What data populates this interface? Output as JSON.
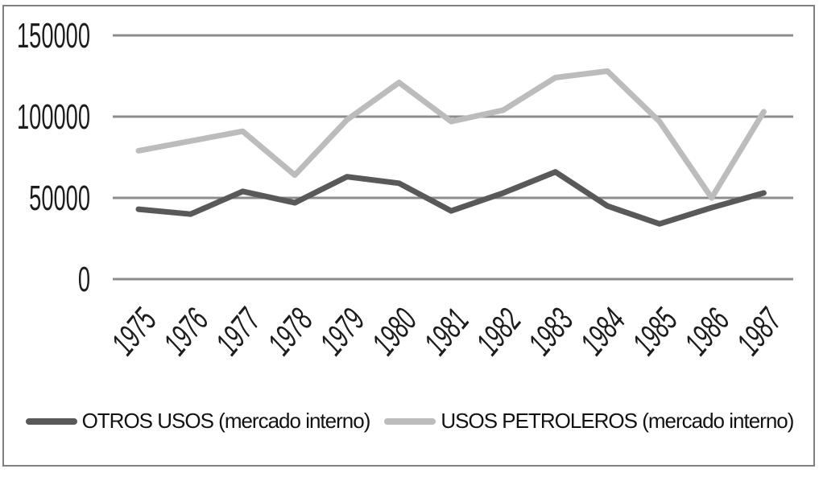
{
  "chart_data": {
    "type": "line",
    "title": "",
    "xlabel": "",
    "ylabel": "",
    "categories": [
      "1975",
      "1976",
      "1977",
      "1978",
      "1979",
      "1980",
      "1981",
      "1982",
      "1983",
      "1984",
      "1985",
      "1986",
      "1987"
    ],
    "series": [
      {
        "name": "OTROS USOS (mercado interno)",
        "color": "#595959",
        "values": [
          43000,
          40000,
          54000,
          47000,
          63000,
          59000,
          42000,
          53000,
          66000,
          45000,
          34000,
          44000,
          53000
        ]
      },
      {
        "name": "USOS PETROLEROS (mercado interno)",
        "color": "#bcbcbc",
        "values": [
          79000,
          85000,
          91000,
          64000,
          98000,
          121000,
          97000,
          104000,
          124000,
          128000,
          97000,
          50000,
          103000
        ]
      }
    ],
    "ylim": [
      0,
      150000
    ],
    "yticks": [
      0,
      50000,
      100000,
      150000
    ],
    "ytick_labels": [
      "0",
      "50000",
      "100000",
      "150000"
    ],
    "grid": "horizontal-only",
    "gridline_color": "#8c8c8c",
    "axis_text_color": "#1c1c1c",
    "x_tick_rotation": -50,
    "legend_position": "bottom",
    "background_color": "#ffffff",
    "border_color": "#808080"
  }
}
